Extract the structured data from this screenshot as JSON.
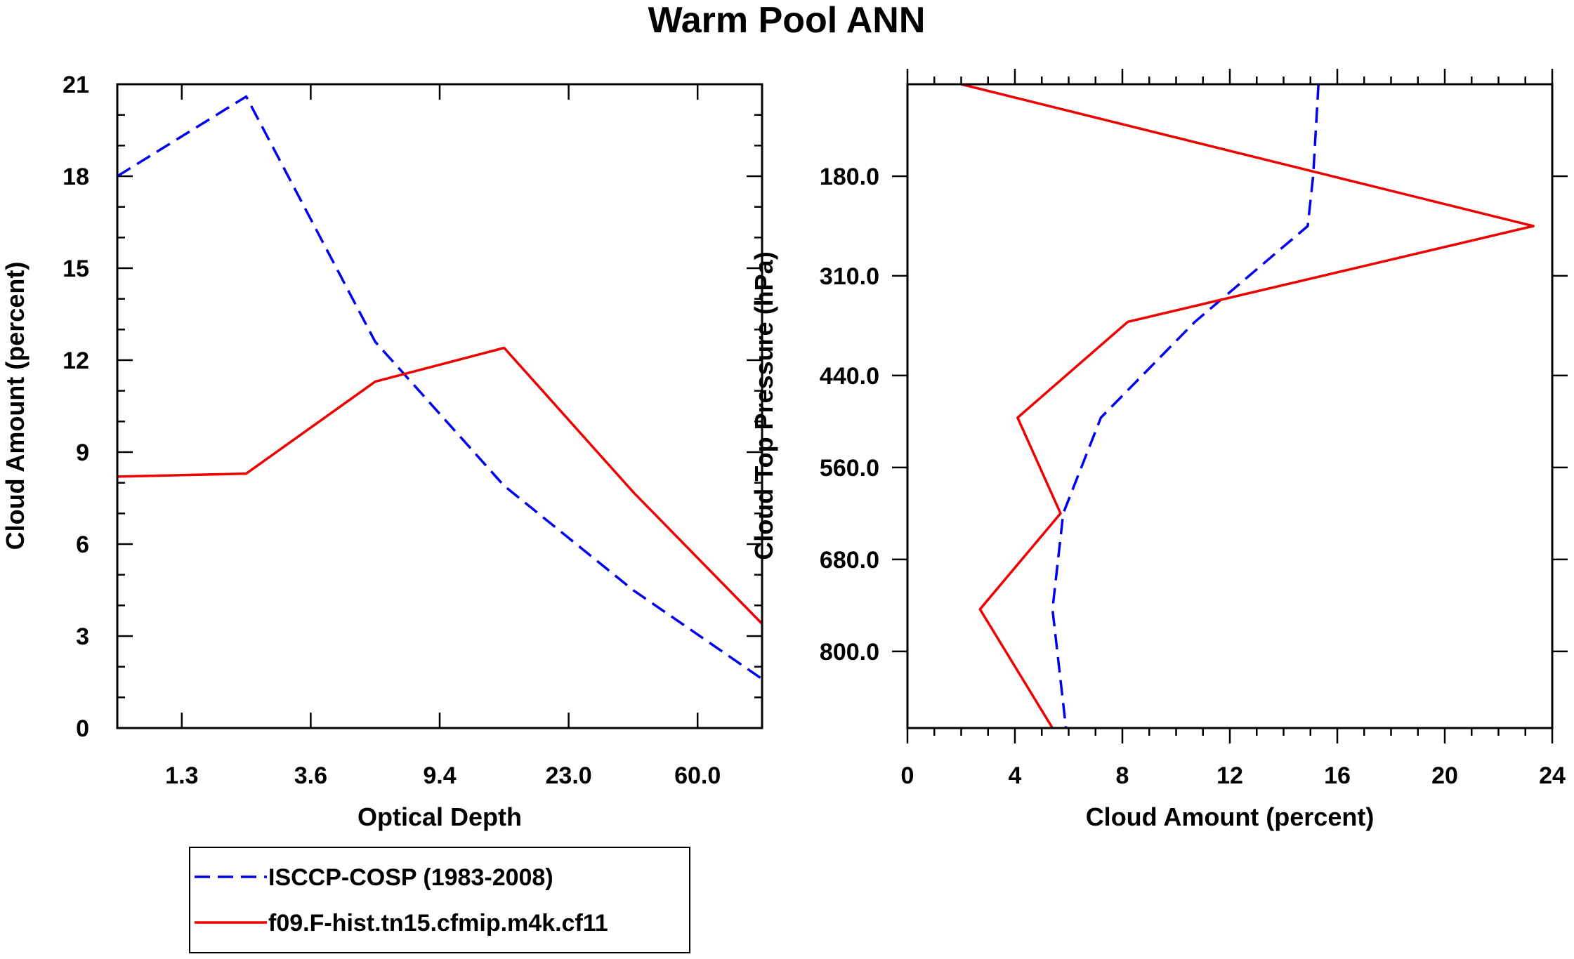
{
  "title": "Warm Pool ANN",
  "colors": {
    "obs": "#0000ee",
    "model": "#ee0000",
    "axis": "#000000"
  },
  "legend": {
    "entries": [
      {
        "label": "ISCCP-COSP (1983-2008)",
        "series": "obs"
      },
      {
        "label": "f09.F-hist.tn15.cfmip.m4k.cf11",
        "series": "model"
      }
    ]
  },
  "chart_data": [
    {
      "type": "line",
      "xlabel": "Optical Depth",
      "ylabel": "Cloud Amount (percent)",
      "xlim": [
        0,
        5
      ],
      "ylim": [
        0,
        21
      ],
      "x_ticks": [
        {
          "pos": 0.5,
          "label": "1.3"
        },
        {
          "pos": 1.5,
          "label": "3.6"
        },
        {
          "pos": 2.5,
          "label": "9.4"
        },
        {
          "pos": 3.5,
          "label": "23.0"
        },
        {
          "pos": 4.5,
          "label": "60.0"
        }
      ],
      "y_ticks": [
        {
          "value": 0,
          "label": "0"
        },
        {
          "value": 3,
          "label": "3"
        },
        {
          "value": 6,
          "label": "6"
        },
        {
          "value": 9,
          "label": "9"
        },
        {
          "value": 12,
          "label": "12"
        },
        {
          "value": 15,
          "label": "15"
        },
        {
          "value": 18,
          "label": "18"
        },
        {
          "value": 21,
          "label": "21"
        }
      ],
      "series": [
        {
          "name": "ISCCP-COSP (1983-2008)",
          "key": "obs",
          "dash": true,
          "x": [
            0,
            1,
            2,
            3,
            4,
            5
          ],
          "y": [
            18.0,
            20.6,
            12.6,
            7.9,
            4.5,
            1.6
          ]
        },
        {
          "name": "f09.F-hist.tn15.cfmip.m4k.cf11",
          "key": "model",
          "dash": false,
          "x": [
            0,
            1,
            2,
            3,
            4,
            5
          ],
          "y": [
            8.2,
            8.3,
            11.3,
            12.4,
            7.7,
            3.4
          ]
        }
      ]
    },
    {
      "type": "line",
      "xlabel": "Cloud Amount (percent)",
      "ylabel": "Cloud Top Pressure (hPa)",
      "xlim": [
        0,
        24
      ],
      "ylim_pressure": [
        60,
        900
      ],
      "x_ticks": [
        {
          "value": 0,
          "label": "0"
        },
        {
          "value": 4,
          "label": "4"
        },
        {
          "value": 8,
          "label": "8"
        },
        {
          "value": 12,
          "label": "12"
        },
        {
          "value": 16,
          "label": "16"
        },
        {
          "value": 20,
          "label": "20"
        },
        {
          "value": 24,
          "label": "24"
        }
      ],
      "y_ticks": [
        {
          "value": 180,
          "label": "180.0"
        },
        {
          "value": 310,
          "label": "310.0"
        },
        {
          "value": 440,
          "label": "440.0"
        },
        {
          "value": 560,
          "label": "560.0"
        },
        {
          "value": 680,
          "label": "680.0"
        },
        {
          "value": 800,
          "label": "800.0"
        }
      ],
      "series": [
        {
          "name": "ISCCP-COSP (1983-2008)",
          "key": "obs",
          "dash": true,
          "pressure": [
            60,
            180,
            245,
            370,
            495,
            620,
            745,
            900
          ],
          "values": [
            15.3,
            15.1,
            14.9,
            10.7,
            7.2,
            5.8,
            5.4,
            5.9
          ]
        },
        {
          "name": "f09.F-hist.tn15.cfmip.m4k.cf11",
          "key": "model",
          "dash": false,
          "pressure": [
            60,
            245,
            370,
            495,
            620,
            745,
            900
          ],
          "values": [
            2.0,
            23.3,
            8.2,
            4.1,
            5.7,
            2.7,
            5.4
          ]
        }
      ]
    }
  ]
}
